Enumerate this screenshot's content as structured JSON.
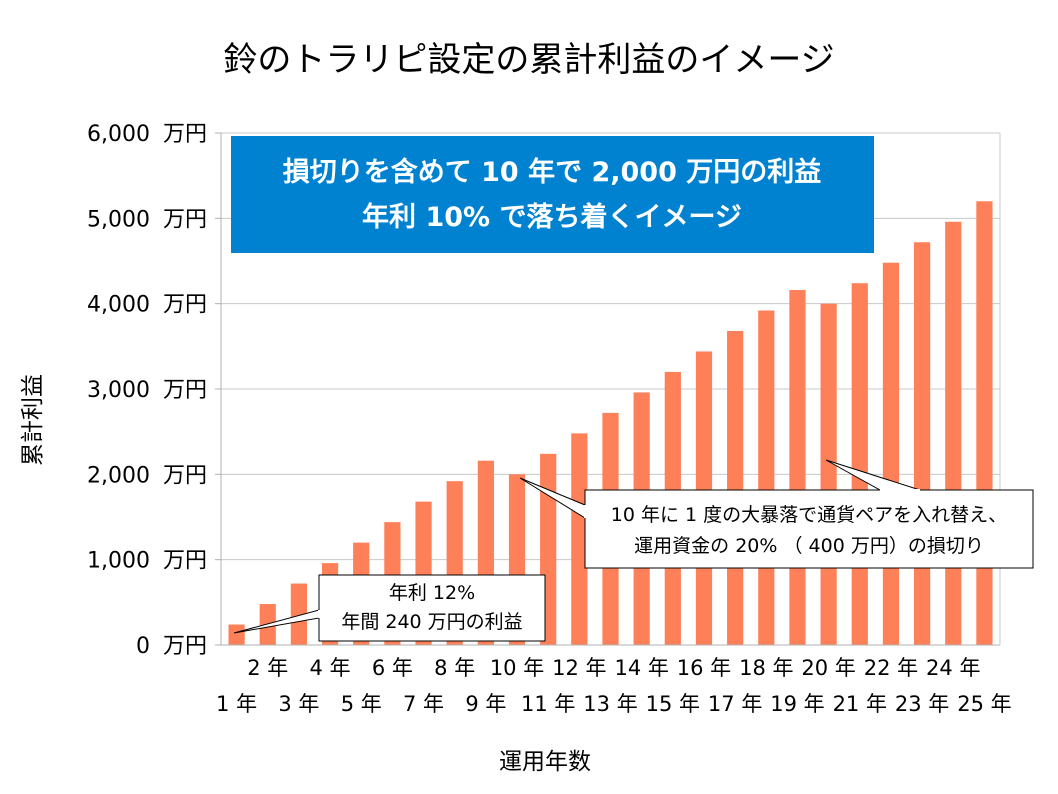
{
  "colors": {
    "bar": "#fe8058",
    "banner": "#0082d1",
    "grid": "#c8c8c8"
  },
  "chart_data": {
    "type": "bar",
    "title": "鈴のトラリピ設定の累計利益のイメージ",
    "xlabel": "運用年数",
    "ylabel": "累計利益",
    "ylim": [
      0,
      6000
    ],
    "y_unit": "万円",
    "y_ticks": [
      "0",
      "1,000",
      "2,000",
      "3,000",
      "4,000",
      "5,000",
      "6,000"
    ],
    "grid": true,
    "categories": [
      "1 年",
      "2 年",
      "3 年",
      "4 年",
      "5 年",
      "6 年",
      "7 年",
      "8 年",
      "9 年",
      "10 年",
      "11 年",
      "12 年",
      "13 年",
      "14 年",
      "15 年",
      "16 年",
      "17 年",
      "18 年",
      "19 年",
      "20 年",
      "21 年",
      "22 年",
      "23 年",
      "24 年",
      "25 年"
    ],
    "values": [
      240,
      480,
      720,
      960,
      1200,
      1440,
      1680,
      1920,
      2160,
      2000,
      2240,
      2480,
      2720,
      2960,
      3200,
      3440,
      3680,
      3920,
      4160,
      4000,
      4240,
      4480,
      4720,
      4960,
      5200
    ],
    "banner": [
      "損切りを含めて 10 年で 2,000 万円の利益",
      "年利 10% で落ち着くイメージ"
    ],
    "annotations": [
      {
        "lines": [
          "年利 12%",
          "年間 240 万円の利益"
        ]
      },
      {
        "lines": [
          "10 年に 1 度の大暴落で通貨ペアを入れ替え、",
          "運用資金の 20% （ 400 万円）の損切り"
        ]
      }
    ]
  }
}
